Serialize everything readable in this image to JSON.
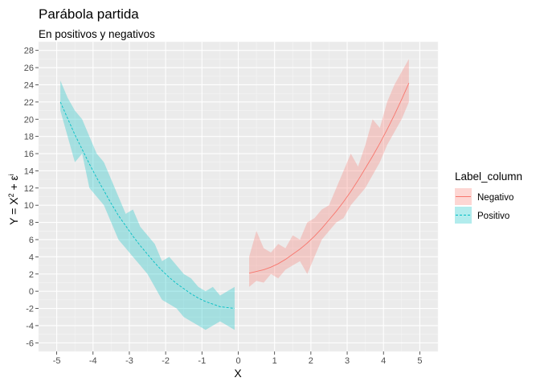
{
  "chart_data": {
    "type": "line",
    "title": "Parábola partida",
    "subtitle": "En positivos y negativos",
    "xlabel": "X",
    "ylabel": {
      "base": "Y = X",
      "sup1": "2",
      "mid": " + ε",
      "sup2": "i"
    },
    "xlim": [
      -5,
      5
    ],
    "ylim": [
      -6,
      28
    ],
    "x_ticks": [
      -5,
      -4,
      -3,
      -2,
      -1,
      0,
      1,
      2,
      3,
      4,
      5
    ],
    "y_ticks": [
      -6,
      -4,
      -2,
      0,
      2,
      4,
      6,
      8,
      10,
      12,
      14,
      16,
      18,
      20,
      22,
      24,
      26,
      28
    ],
    "grid": true,
    "legend": {
      "title": "Label_column",
      "position": "right",
      "entries": [
        {
          "label": "Negativo",
          "color": "#F8766D",
          "fill": "#F8766D",
          "linetype": "solid"
        },
        {
          "label": "Positivo",
          "color": "#00BFC4",
          "fill": "#00BFC4",
          "linetype": "dashed"
        }
      ]
    },
    "series": [
      {
        "name": "Negativo",
        "color": "#F8766D",
        "linetype": "solid",
        "x": [
          0.3,
          0.5,
          0.7,
          0.9,
          1.1,
          1.3,
          1.5,
          1.7,
          1.9,
          2.1,
          2.3,
          2.5,
          2.7,
          2.9,
          3.1,
          3.3,
          3.5,
          3.7,
          3.9,
          4.1,
          4.3,
          4.5,
          4.7
        ],
        "y": [
          2.1,
          2.3,
          2.5,
          2.8,
          3.2,
          3.7,
          4.3,
          4.9,
          5.6,
          6.4,
          7.3,
          8.3,
          9.3,
          10.4,
          11.6,
          12.9,
          14.3,
          15.7,
          17.2,
          18.8,
          20.5,
          22.3,
          24.2
        ],
        "ribbon_low": [
          0.5,
          1.2,
          1.0,
          2.0,
          1.5,
          2.5,
          3.0,
          3.5,
          2.0,
          4.0,
          6.0,
          7.0,
          8.0,
          8.5,
          10.0,
          11.0,
          12.0,
          13.5,
          15.0,
          17.0,
          18.5,
          20.0,
          22.0
        ],
        "ribbon_high": [
          4.0,
          7.0,
          5.0,
          4.5,
          5.5,
          5.0,
          6.5,
          6.0,
          8.0,
          8.5,
          9.5,
          10.0,
          12.0,
          14.0,
          16.0,
          14.5,
          17.0,
          20.0,
          19.0,
          22.0,
          24.0,
          25.5,
          27.0
        ]
      },
      {
        "name": "Positivo",
        "color": "#00BFC4",
        "linetype": "dashed",
        "x": [
          -4.9,
          -4.7,
          -4.5,
          -4.3,
          -4.1,
          -3.9,
          -3.7,
          -3.5,
          -3.3,
          -3.1,
          -2.9,
          -2.7,
          -2.5,
          -2.3,
          -2.1,
          -1.9,
          -1.7,
          -1.5,
          -1.3,
          -1.1,
          -0.9,
          -0.7,
          -0.5,
          -0.3,
          -0.1
        ],
        "y": [
          22.0,
          20.1,
          18.2,
          16.5,
          14.8,
          13.2,
          11.7,
          10.2,
          8.8,
          7.6,
          6.4,
          5.3,
          4.3,
          3.3,
          2.4,
          1.6,
          0.9,
          0.3,
          -0.3,
          -0.8,
          -1.2,
          -1.5,
          -1.8,
          -1.9,
          -2.0
        ],
        "ribbon_low": [
          21.0,
          18.0,
          15.0,
          16.0,
          12.0,
          11.0,
          10.0,
          8.0,
          6.0,
          5.0,
          4.0,
          3.0,
          2.0,
          0.5,
          -1.0,
          -1.5,
          -2.0,
          -3.0,
          -3.5,
          -4.0,
          -4.5,
          -4.0,
          -3.5,
          -4.0,
          -4.5
        ],
        "ribbon_high": [
          24.5,
          22.5,
          21.0,
          20.0,
          18.0,
          16.0,
          15.0,
          13.0,
          11.0,
          9.0,
          9.5,
          7.5,
          6.5,
          5.5,
          3.5,
          4.0,
          3.0,
          2.0,
          1.5,
          0.5,
          0.0,
          0.5,
          -0.5,
          0.0,
          0.5
        ]
      }
    ]
  }
}
